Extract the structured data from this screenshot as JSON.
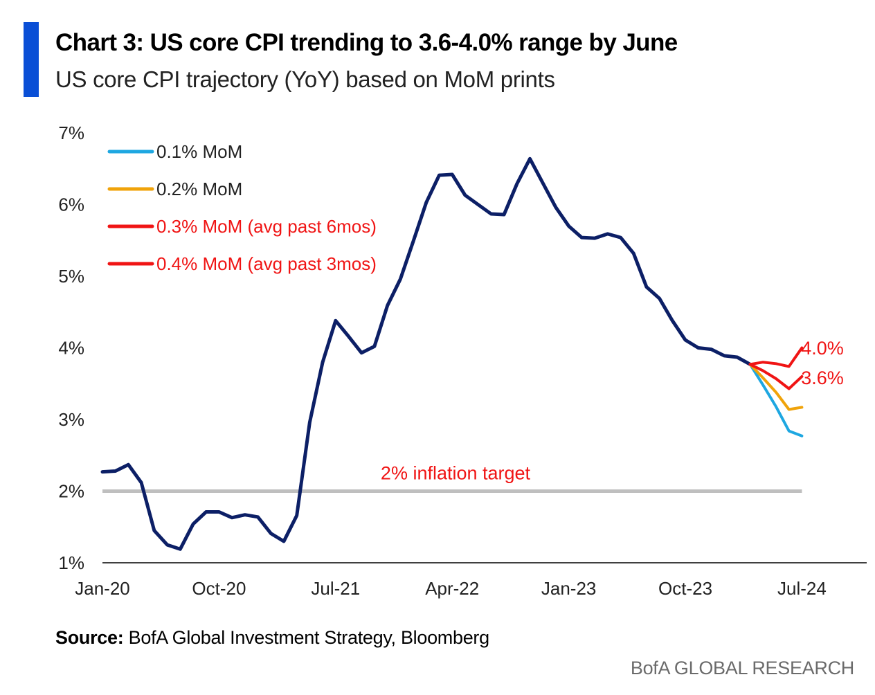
{
  "header": {
    "title": "Chart 3: US core CPI trending to 3.6-4.0% range by June",
    "subtitle": "US core CPI trajectory (YoY) based on MoM prints"
  },
  "footer": {
    "source_label": "Source:",
    "source_text": " BofA Global Investment Strategy, Bloomberg",
    "brand": "BofA GLOBAL RESEARCH"
  },
  "colors": {
    "accent": "#0a4fd6",
    "history": "#0c1f66",
    "mom_01": "#1ea7e1",
    "mom_02": "#f0a30a",
    "mom_high": "#f01414",
    "target_line": "#bfbfbf",
    "target_label": "#f01414"
  },
  "chart_data": {
    "type": "line",
    "x_unit": "month",
    "x_start": "2020-01",
    "ylim": [
      1,
      7
    ],
    "y_ticks": [
      1,
      2,
      3,
      4,
      5,
      6,
      7
    ],
    "y_tick_labels": [
      "1%",
      "2%",
      "3%",
      "4%",
      "5%",
      "6%",
      "7%"
    ],
    "x_ticks": [
      {
        "month": "2020-01",
        "label": "Jan-20"
      },
      {
        "month": "2020-10",
        "label": "Oct-20"
      },
      {
        "month": "2021-07",
        "label": "Jul-21"
      },
      {
        "month": "2022-04",
        "label": "Apr-22"
      },
      {
        "month": "2023-01",
        "label": "Jan-23"
      },
      {
        "month": "2023-10",
        "label": "Oct-23"
      },
      {
        "month": "2024-07",
        "label": "Jul-24"
      }
    ],
    "x_range": [
      "2020-01",
      "2024-12"
    ],
    "legend_position": "top-left",
    "series": [
      {
        "key": "history",
        "start": "2020-01",
        "values": [
          2.27,
          2.28,
          2.37,
          2.12,
          1.45,
          1.25,
          1.19,
          1.54,
          1.71,
          1.71,
          1.63,
          1.67,
          1.64,
          1.41,
          1.3,
          1.66,
          2.96,
          3.8,
          4.38,
          4.16,
          3.93,
          4.02,
          4.59,
          4.96,
          5.49,
          6.03,
          6.41,
          6.42,
          6.13,
          6.0,
          5.87,
          5.86,
          6.29,
          6.64,
          6.3,
          5.96,
          5.7,
          5.54,
          5.53,
          5.59,
          5.54,
          5.32,
          4.85,
          4.69,
          4.38,
          4.11,
          4.0,
          3.98,
          3.89,
          3.87,
          3.77
        ]
      },
      {
        "key": "mom_01",
        "name": "0.1% MoM",
        "start": "2024-03",
        "values": [
          3.77,
          3.48,
          3.18,
          2.84,
          2.77
        ]
      },
      {
        "key": "mom_02",
        "name": "0.2% MoM",
        "start": "2024-03",
        "values": [
          3.77,
          3.58,
          3.38,
          3.14,
          3.17
        ]
      },
      {
        "key": "mom_high",
        "name": "0.3% MoM (avg past 6mos)",
        "start": "2024-03",
        "values": [
          3.77,
          3.68,
          3.57,
          3.43,
          3.6
        ]
      },
      {
        "key": "mom_high",
        "name": "0.4% MoM (avg past 3mos)",
        "start": "2024-03",
        "values": [
          3.77,
          3.8,
          3.78,
          3.74,
          4.0
        ]
      }
    ],
    "reference_line": {
      "value": 2.0,
      "label": "2% inflation target",
      "from": "2020-01",
      "to": "2024-07"
    },
    "end_labels": [
      {
        "text": "4.0%",
        "value": 4.0,
        "month": "2024-07"
      },
      {
        "text": "3.6%",
        "value": 3.6,
        "month": "2024-07"
      }
    ]
  }
}
